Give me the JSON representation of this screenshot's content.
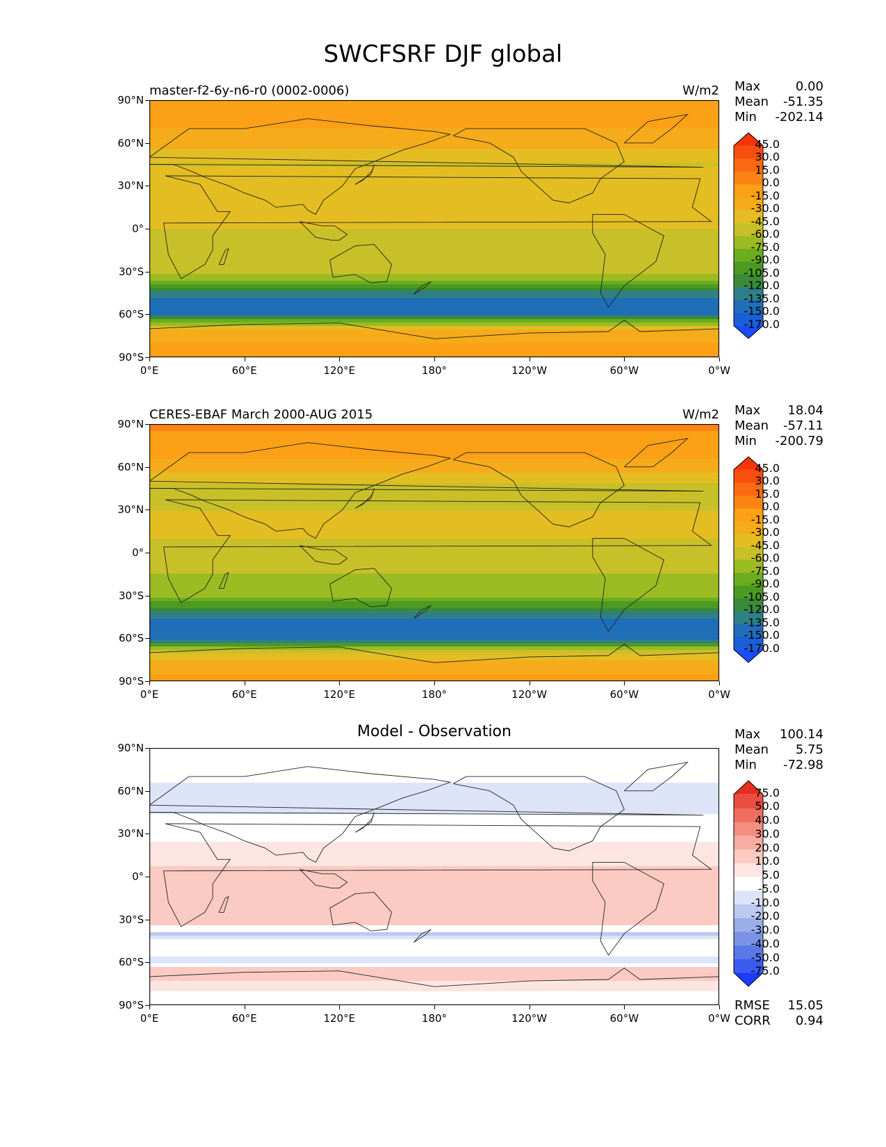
{
  "title": "SWCFSRF DJF global",
  "chart_data": [
    {
      "type": "heatmap",
      "title_left": "master-f2-6y-n6-r0 (0002-0006)",
      "title_right": "W/m2",
      "stats": [
        {
          "label": "Max",
          "value": "0.00"
        },
        {
          "label": "Mean",
          "value": "-51.35"
        },
        {
          "label": "Min",
          "value": "-202.14"
        }
      ],
      "colorbar": {
        "levels": [
          "45.0",
          "30.0",
          "15.0",
          "0.0",
          "-15.0",
          "-30.0",
          "-45.0",
          "-60.0",
          "-75.0",
          "-90.0",
          "-105.0",
          "-120.0",
          "-135.0",
          "-150.0",
          "-170.0"
        ],
        "colors": [
          "#1a4dff",
          "#1a5fd6",
          "#1f6eb8",
          "#2f7f87",
          "#3a8a3a",
          "#4c9a22",
          "#6aad1f",
          "#9cbb22",
          "#c8c028",
          "#e3bd22",
          "#f6ab1a",
          "#fca016",
          "#fb8414",
          "#fa6a12",
          "#f84f10",
          "#f7350d"
        ],
        "cmap": "sequential"
      },
      "x_ticks": [
        "0°E",
        "60°E",
        "120°E",
        "180°",
        "120°W",
        "60°W",
        "0°W"
      ],
      "y_ticks": [
        "90°N",
        "60°N",
        "30°N",
        "0°",
        "30°S",
        "60°S",
        "90°S"
      ],
      "zonal_profile": [
        {
          "lat": 90,
          "value": -10
        },
        {
          "lat": 75,
          "value": -12
        },
        {
          "lat": 60,
          "value": -22
        },
        {
          "lat": 45,
          "value": -45
        },
        {
          "lat": 30,
          "value": -40
        },
        {
          "lat": 15,
          "value": -30
        },
        {
          "lat": 0,
          "value": -45
        },
        {
          "lat": -15,
          "value": -50
        },
        {
          "lat": -30,
          "value": -55
        },
        {
          "lat": -40,
          "value": -90
        },
        {
          "lat": -50,
          "value": -150
        },
        {
          "lat": -60,
          "value": -140
        },
        {
          "lat": -70,
          "value": -25
        },
        {
          "lat": -90,
          "value": -5
        }
      ]
    },
    {
      "type": "heatmap",
      "title_left": "CERES-EBAF March 2000-AUG 2015",
      "title_right": "W/m2",
      "stats": [
        {
          "label": "Max",
          "value": "18.04"
        },
        {
          "label": "Mean",
          "value": "-57.11"
        },
        {
          "label": "Min",
          "value": "-200.79"
        }
      ],
      "colorbar": {
        "levels": [
          "45.0",
          "30.0",
          "15.0",
          "0.0",
          "-15.0",
          "-30.0",
          "-45.0",
          "-60.0",
          "-75.0",
          "-90.0",
          "-105.0",
          "-120.0",
          "-135.0",
          "-150.0",
          "-170.0"
        ],
        "colors": [
          "#1a4dff",
          "#1a5fd6",
          "#1f6eb8",
          "#2f7f87",
          "#3a8a3a",
          "#4c9a22",
          "#6aad1f",
          "#9cbb22",
          "#c8c028",
          "#e3bd22",
          "#f6ab1a",
          "#fca016",
          "#fb8414",
          "#fa6a12",
          "#f84f10",
          "#f7350d"
        ],
        "cmap": "sequential"
      },
      "x_ticks": [
        "0°E",
        "60°E",
        "120°E",
        "180°",
        "120°W",
        "60°W",
        "0°W"
      ],
      "y_ticks": [
        "90°N",
        "60°N",
        "30°N",
        "0°",
        "30°S",
        "60°S",
        "90°S"
      ],
      "zonal_profile": [
        {
          "lat": 90,
          "value": 5
        },
        {
          "lat": 75,
          "value": -8
        },
        {
          "lat": 60,
          "value": -20
        },
        {
          "lat": 45,
          "value": -50
        },
        {
          "lat": 30,
          "value": -45
        },
        {
          "lat": 15,
          "value": -40
        },
        {
          "lat": 0,
          "value": -55
        },
        {
          "lat": -15,
          "value": -60
        },
        {
          "lat": -30,
          "value": -70
        },
        {
          "lat": -40,
          "value": -110
        },
        {
          "lat": -50,
          "value": -150
        },
        {
          "lat": -60,
          "value": -145
        },
        {
          "lat": -70,
          "value": -40
        },
        {
          "lat": -90,
          "value": -5
        }
      ]
    },
    {
      "type": "heatmap",
      "title_center": "Model - Observation",
      "stats": [
        {
          "label": "Max",
          "value": "100.14"
        },
        {
          "label": "Mean",
          "value": "5.75"
        },
        {
          "label": "Min",
          "value": "-72.98"
        }
      ],
      "metrics": [
        {
          "label": "RMSE",
          "value": "15.05"
        },
        {
          "label": "CORR",
          "value": "0.94"
        }
      ],
      "colorbar": {
        "levels": [
          "75.0",
          "50.0",
          "40.0",
          "30.0",
          "20.0",
          "10.0",
          "5.0",
          "-5.0",
          "-10.0",
          "-20.0",
          "-30.0",
          "-40.0",
          "-50.0",
          "-75.0"
        ],
        "colors": [
          "#1a3cff",
          "#3b5bf0",
          "#5a78e8",
          "#7a93e6",
          "#9aaee9",
          "#bcc9f0",
          "#dde4f8",
          "#ffffff",
          "#fde6e2",
          "#fbcbc3",
          "#f8ada2",
          "#f48e80",
          "#ef6e5f",
          "#ea4e40",
          "#e52f22"
        ],
        "cmap": "diverging"
      },
      "x_ticks": [
        "0°E",
        "60°E",
        "120°E",
        "180°",
        "120°W",
        "60°W",
        "0°W"
      ],
      "y_ticks": [
        "90°N",
        "60°N",
        "30°N",
        "0°",
        "30°S",
        "60°S",
        "90°S"
      ],
      "zonal_profile": [
        {
          "lat": 90,
          "value": 0
        },
        {
          "lat": 75,
          "value": 0
        },
        {
          "lat": 60,
          "value": -8
        },
        {
          "lat": 45,
          "value": -5
        },
        {
          "lat": 30,
          "value": 3
        },
        {
          "lat": 15,
          "value": 8
        },
        {
          "lat": 0,
          "value": 12
        },
        {
          "lat": -15,
          "value": 18
        },
        {
          "lat": -30,
          "value": 20
        },
        {
          "lat": -40,
          "value": -12
        },
        {
          "lat": -50,
          "value": 5
        },
        {
          "lat": -60,
          "value": -10
        },
        {
          "lat": -65,
          "value": 15
        },
        {
          "lat": -75,
          "value": 8
        },
        {
          "lat": -90,
          "value": 0
        }
      ]
    }
  ]
}
